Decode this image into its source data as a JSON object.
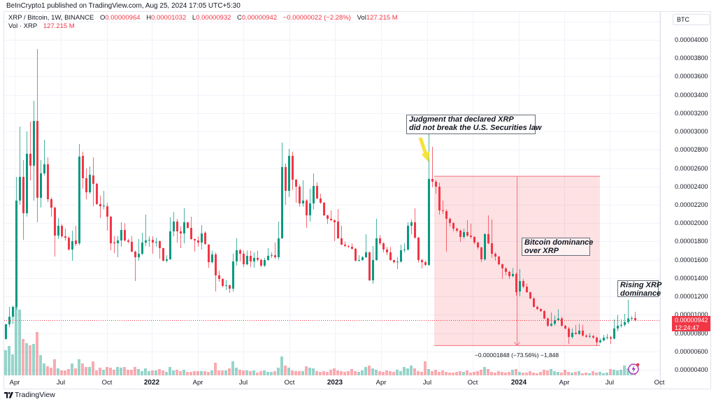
{
  "header": {
    "credit": "BeInCrypto1 published on TradingView.com, Aug 25, 2024 17:05 UTC+5:30"
  },
  "legend": {
    "symbol": "XRP / Bitcoin, 1W, BINANCE",
    "open_label": "O",
    "open": "0.00000964",
    "high_label": "H",
    "high": "0.00001032",
    "low_label": "L",
    "low": "0.00000932",
    "close_label": "C",
    "close": "0.00000942",
    "change": "−0.00000022 (−2.28%)",
    "vol_label": "Vol",
    "vol": "127.215 M",
    "vol_series_label": "Vol · XRP",
    "vol_series_value": "127.215 M"
  },
  "price_axis": {
    "currency_button": "BTC",
    "ticks": [
      "0.00004000",
      "0.00003800",
      "0.00003600",
      "0.00003400",
      "0.00003200",
      "0.00003000",
      "0.00002800",
      "0.00002600",
      "0.00002400",
      "0.00002200",
      "0.00002000",
      "0.00001800",
      "0.00001600",
      "0.00001400",
      "0.00001200",
      "0.00001000",
      "0.00000800",
      "0.00000600",
      "0.00000400"
    ],
    "last_price": "0.00000942",
    "countdown": "12:24:47"
  },
  "time_axis": {
    "ticks": [
      {
        "label": "Apr",
        "at_index": 2.6,
        "bold": false
      },
      {
        "label": "Jul",
        "at_index": 15.8,
        "bold": false
      },
      {
        "label": "Oct",
        "at_index": 29,
        "bold": false
      },
      {
        "label": "2022",
        "at_index": 41.8,
        "bold": true
      },
      {
        "label": "Apr",
        "at_index": 55,
        "bold": false
      },
      {
        "label": "Jul",
        "at_index": 68,
        "bold": false
      },
      {
        "label": "Oct",
        "at_index": 81.2,
        "bold": false
      },
      {
        "label": "2023",
        "at_index": 94.2,
        "bold": true
      },
      {
        "label": "Apr",
        "at_index": 107.4,
        "bold": false
      },
      {
        "label": "Jul",
        "at_index": 120.6,
        "bold": false
      },
      {
        "label": "Oct",
        "at_index": 133.6,
        "bold": false
      },
      {
        "label": "2024",
        "at_index": 146.8,
        "bold": true
      },
      {
        "label": "Apr",
        "at_index": 159.8,
        "bold": false
      },
      {
        "label": "Jul",
        "at_index": 172.8,
        "bold": false
      },
      {
        "label": "Oct",
        "at_index": 187,
        "bold": false
      }
    ]
  },
  "annotations": {
    "judgment": {
      "line1": "Judgment that declared XRP",
      "line2": "did not break the U.S. Securities law"
    },
    "btc_dominance": {
      "line1": "Bitcoin dominance",
      "line2": "over XRP"
    },
    "rising": {
      "line1": "Rising XRP",
      "line2": "dominance"
    }
  },
  "measure": {
    "label": "−0.00001848 (−73.56%) −1,848",
    "from_price_sat": 2512,
    "to_price_sat": 664,
    "from_index": 122.6,
    "to_index": 170
  },
  "footer": {
    "brand": "TradingView"
  },
  "colors": {
    "up": "#089981",
    "down": "#f23645",
    "range_fill": "rgba(242,54,69,0.15)",
    "range_line": "#f4707b",
    "annotation_arrow": "#f5e23c",
    "alert_icon": "#9c27b0",
    "grid": "#f0f3fa"
  },
  "chart_data": {
    "type": "bar",
    "bar_style": "candlestick",
    "title": "XRP / Bitcoin, 1W, BINANCE",
    "xlabel": "",
    "ylabel": "BTC",
    "price_unit": "satoshi (1e-8 BTC); ohlc rows are [open, high, low, close]",
    "interval": "1W",
    "x_tick_labels": [
      "Apr",
      "Jul",
      "Oct",
      "2022",
      "Apr",
      "Jul",
      "Oct",
      "2023",
      "Apr",
      "Jul",
      "Oct",
      "2024",
      "Apr",
      "Jul",
      "Oct"
    ],
    "y_tick_labels": [
      "0.00004000",
      "0.00003800",
      "0.00003600",
      "0.00003400",
      "0.00003200",
      "0.00003000",
      "0.00002800",
      "0.00002600",
      "0.00002400",
      "0.00002200",
      "0.00002000",
      "0.00001800",
      "0.00001600",
      "0.00001400",
      "0.00001200",
      "0.00001000",
      "0.00000800",
      "0.00000600",
      "0.00000400"
    ],
    "ylim": [
      3.4e-06,
      4.31e-05
    ],
    "grid": true,
    "legend_position": "top-left",
    "last": {
      "open": 9.64e-06,
      "high": 1.032e-05,
      "low": 9.32e-06,
      "close": 9.42e-06,
      "change": -2.2e-07,
      "change_pct": -2.28,
      "volume": "127.215M"
    },
    "annotations": [
      "Judgment that declared XRP did not break the U.S. Securities law",
      "Bitcoin dominance over XRP",
      "Rising XRP dominance"
    ],
    "price_range_measure": {
      "from": 2.512e-05,
      "to": 6.64e-06,
      "delta": -1.848e-05,
      "delta_pct": -73.56,
      "ticks": -1848
    },
    "ohlc": [
      [
        735,
        900,
        730,
        896
      ],
      [
        896,
        1086,
        865,
        979
      ],
      [
        979,
        1100,
        900,
        1086
      ],
      [
        1086,
        2505,
        1060,
        2246
      ],
      [
        2246,
        3054,
        2200,
        2505
      ],
      [
        2505,
        2688,
        1818,
        2108
      ],
      [
        2108,
        3000,
        2070,
        2757
      ],
      [
        2757,
        3108,
        2467,
        2627
      ],
      [
        2627,
        3336,
        2246,
        3115
      ],
      [
        3115,
        3900,
        2009,
        2276
      ],
      [
        2276,
        2688,
        2169,
        2543
      ],
      [
        2543,
        2909,
        2520,
        2642
      ],
      [
        2642,
        2718,
        2230,
        2261
      ],
      [
        2261,
        2280,
        2070,
        2169
      ],
      [
        2169,
        2180,
        1635,
        1864
      ],
      [
        1864,
        2055,
        1826,
        1971
      ],
      [
        1971,
        1990,
        1840,
        1856
      ],
      [
        1856,
        1940,
        1810,
        1840
      ],
      [
        1840,
        1856,
        1700,
        1712
      ],
      [
        1712,
        1918,
        1590,
        1803
      ],
      [
        1811,
        1970,
        1750,
        1773
      ],
      [
        1780,
        2864,
        1760,
        2726
      ],
      [
        2734,
        2780,
        2375,
        2490
      ],
      [
        2490,
        2597,
        2261,
        2337
      ],
      [
        2337,
        2619,
        2320,
        2528
      ],
      [
        2520,
        2718,
        2184,
        2429
      ],
      [
        2429,
        2440,
        2200,
        2208
      ],
      [
        2208,
        2300,
        2055,
        2184
      ],
      [
        2184,
        2352,
        2150,
        2190
      ],
      [
        2184,
        2220,
        1918,
        2070
      ],
      [
        2070,
        2080,
        1704,
        1780
      ],
      [
        1790,
        1860,
        1673,
        1780
      ],
      [
        1780,
        1860,
        1628,
        1811
      ],
      [
        1811,
        2009,
        1742,
        1925
      ],
      [
        1925,
        2000,
        1800,
        1811
      ],
      [
        1811,
        1830,
        1780,
        1796
      ],
      [
        1796,
        1860,
        1680,
        1689
      ],
      [
        1689,
        1700,
        1368,
        1628
      ],
      [
        1628,
        1826,
        1590,
        1666
      ],
      [
        1666,
        1895,
        1650,
        1788
      ],
      [
        1788,
        2093,
        1750,
        1811
      ],
      [
        1811,
        1856,
        1742,
        1818
      ],
      [
        1818,
        1856,
        1666,
        1788
      ],
      [
        1788,
        1840,
        1740,
        1795
      ],
      [
        1803,
        1810,
        1612,
        1727
      ],
      [
        1727,
        1730,
        1580,
        1590
      ],
      [
        1590,
        1650,
        1570,
        1605
      ],
      [
        1605,
        2063,
        1600,
        1910
      ],
      [
        1910,
        2123,
        1856,
        2017
      ],
      [
        2017,
        2047,
        1788,
        1910
      ],
      [
        1910,
        1963,
        1727,
        1887
      ],
      [
        1887,
        2162,
        1780,
        2009
      ],
      [
        2009,
        2010,
        1940,
        1948
      ],
      [
        1948,
        2070,
        1820,
        1826
      ],
      [
        1826,
        1830,
        1689,
        1811
      ],
      [
        1811,
        1856,
        1742,
        1788
      ],
      [
        1788,
        1979,
        1712,
        1887
      ],
      [
        1895,
        1910,
        1760,
        1773
      ],
      [
        1765,
        1770,
        1513,
        1574
      ],
      [
        1574,
        1700,
        1560,
        1658
      ],
      [
        1658,
        1680,
        1254,
        1430
      ],
      [
        1430,
        1480,
        1360,
        1391
      ],
      [
        1391,
        1400,
        1300,
        1315
      ],
      [
        1315,
        1380,
        1270,
        1322
      ],
      [
        1322,
        1330,
        1239,
        1285
      ],
      [
        1285,
        1666,
        1254,
        1582
      ],
      [
        1582,
        1834,
        1536,
        1704
      ],
      [
        1704,
        1720,
        1582,
        1666
      ],
      [
        1666,
        1700,
        1521,
        1551
      ],
      [
        1551,
        1700,
        1540,
        1643
      ],
      [
        1643,
        1700,
        1521,
        1582
      ],
      [
        1582,
        1680,
        1513,
        1620
      ],
      [
        1620,
        1700,
        1580,
        1600
      ],
      [
        1600,
        1610,
        1520,
        1536
      ],
      [
        1536,
        1620,
        1521,
        1597
      ],
      [
        1597,
        1727,
        1590,
        1643
      ],
      [
        1643,
        1680,
        1620,
        1650
      ],
      [
        1650,
        1788,
        1610,
        1628
      ],
      [
        1628,
        2017,
        1600,
        1834
      ],
      [
        1834,
        2879,
        1830,
        2612
      ],
      [
        2612,
        2650,
        2200,
        2352
      ],
      [
        2352,
        2810,
        2284,
        2734
      ],
      [
        2734,
        2780,
        2360,
        2474
      ],
      [
        2474,
        2480,
        2223,
        2398
      ],
      [
        2398,
        2420,
        2180,
        2215
      ],
      [
        2215,
        2467,
        2180,
        2246
      ],
      [
        2246,
        2260,
        1948,
        2085
      ],
      [
        2085,
        2375,
        2017,
        2215
      ],
      [
        2215,
        2543,
        2150,
        2406
      ],
      [
        2406,
        2444,
        2260,
        2269
      ],
      [
        2269,
        2320,
        2210,
        2223
      ],
      [
        2223,
        2230,
        2080,
        2085
      ],
      [
        2085,
        2090,
        1990,
        2047
      ],
      [
        2047,
        2140,
        2020,
        2032
      ],
      [
        2032,
        2040,
        1803,
        2009
      ],
      [
        2017,
        2154,
        1830,
        1834
      ],
      [
        1834,
        1971,
        1760,
        1765
      ],
      [
        1765,
        1800,
        1740,
        1750
      ],
      [
        1750,
        1760,
        1730,
        1742
      ],
      [
        1742,
        1780,
        1710,
        1720
      ],
      [
        1720,
        1730,
        1580,
        1590
      ],
      [
        1590,
        1650,
        1580,
        1597
      ],
      [
        1597,
        1640,
        1590,
        1628
      ],
      [
        1628,
        1880,
        1620,
        1681
      ],
      [
        1681,
        1690,
        1370,
        1376
      ],
      [
        1376,
        1750,
        1338,
        1597
      ],
      [
        1597,
        2047,
        1590,
        1834
      ],
      [
        1834,
        1870,
        1760,
        1780
      ],
      [
        1780,
        1790,
        1680,
        1712
      ],
      [
        1712,
        1740,
        1650,
        1681
      ],
      [
        1681,
        1740,
        1590,
        1597
      ],
      [
        1597,
        1600,
        1560,
        1574
      ],
      [
        1574,
        1630,
        1498,
        1580
      ],
      [
        1580,
        1765,
        1570,
        1704
      ],
      [
        1704,
        1780,
        1680,
        1712
      ],
      [
        1712,
        2009,
        1700,
        1971
      ],
      [
        1971,
        2040,
        1880,
        2009
      ],
      [
        2009,
        2162,
        1830,
        1841
      ],
      [
        1841,
        1850,
        1570,
        1597
      ],
      [
        1597,
        1610,
        1506,
        1574
      ],
      [
        1574,
        1590,
        1530,
        1544
      ],
      [
        1544,
        2980,
        1530,
        2482
      ],
      [
        2482,
        2833,
        2390,
        2452
      ],
      [
        2452,
        2470,
        2322,
        2398
      ],
      [
        2398,
        2440,
        2093,
        2139
      ],
      [
        2139,
        2246,
        2100,
        2131
      ],
      [
        2131,
        2150,
        1689,
        2047
      ],
      [
        2047,
        2060,
        1960,
        2001
      ],
      [
        2001,
        2010,
        1910,
        1940
      ],
      [
        1940,
        1950,
        1900,
        1918
      ],
      [
        1918,
        1930,
        1796,
        1849
      ],
      [
        1849,
        1940,
        1830,
        1902
      ],
      [
        1902,
        2032,
        1850,
        1864
      ],
      [
        1864,
        1994,
        1830,
        1849
      ],
      [
        1849,
        1860,
        1770,
        1788
      ],
      [
        1788,
        1800,
        1710,
        1735
      ],
      [
        1735,
        1740,
        1574,
        1605
      ],
      [
        1605,
        1890,
        1590,
        1880
      ],
      [
        1880,
        2085,
        1770,
        1780
      ],
      [
        1780,
        2040,
        1620,
        1666
      ],
      [
        1666,
        1680,
        1590,
        1635
      ],
      [
        1635,
        1640,
        1540,
        1551
      ],
      [
        1551,
        1560,
        1391,
        1506
      ],
      [
        1506,
        1520,
        1430,
        1468
      ],
      [
        1468,
        1480,
        1391,
        1422
      ],
      [
        1422,
        1510,
        1410,
        1445
      ],
      [
        1445,
        1460,
        1208,
        1246
      ],
      [
        1254,
        1498,
        1200,
        1368
      ],
      [
        1368,
        1390,
        1290,
        1307
      ],
      [
        1307,
        1340,
        1240,
        1246
      ],
      [
        1246,
        1250,
        1170,
        1178
      ],
      [
        1178,
        1190,
        1080,
        1086
      ],
      [
        1086,
        1100,
        1050,
        1063
      ],
      [
        1063,
        1070,
        1030,
        1040
      ],
      [
        1040,
        1050,
        950,
        960
      ],
      [
        960,
        970,
        870,
        880
      ],
      [
        880,
        1025,
        870,
        902
      ],
      [
        902,
        990,
        880,
        940
      ],
      [
        940,
        1060,
        930,
        960
      ],
      [
        960,
        980,
        870,
        880
      ],
      [
        880,
        890,
        840,
        850
      ],
      [
        850,
        870,
        682,
        758
      ],
      [
        758,
        850,
        740,
        804
      ],
      [
        804,
        888,
        780,
        790
      ],
      [
        790,
        900,
        780,
        827
      ],
      [
        827,
        890,
        760,
        773
      ],
      [
        773,
        790,
        750,
        760
      ],
      [
        760,
        800,
        745,
        768
      ],
      [
        768,
        780,
        740,
        750
      ],
      [
        750,
        760,
        659,
        700
      ],
      [
        700,
        740,
        690,
        720
      ],
      [
        720,
        780,
        710,
        750
      ],
      [
        750,
        790,
        730,
        755
      ],
      [
        755,
        770,
        680,
        740
      ],
      [
        740,
        950,
        730,
        850
      ],
      [
        850,
        1000,
        820,
        880
      ],
      [
        880,
        950,
        860,
        890
      ],
      [
        890,
        1010,
        870,
        920
      ],
      [
        920,
        1163,
        900,
        960
      ],
      [
        960,
        985,
        940,
        964
      ],
      [
        964,
        1032,
        932,
        942
      ]
    ],
    "volume_relative": [
      36,
      42,
      30,
      98,
      94,
      52,
      46,
      43,
      45,
      62,
      29,
      17,
      13,
      11,
      23,
      10,
      7,
      7,
      9,
      17,
      10,
      23,
      17,
      12,
      12,
      20,
      7,
      11,
      8,
      12,
      11,
      8,
      12,
      11,
      12,
      8,
      8,
      12,
      9,
      6,
      10,
      6,
      7,
      7,
      9,
      7,
      5,
      12,
      7,
      8,
      6,
      8,
      5,
      5,
      6,
      6,
      6,
      6,
      5,
      7,
      18,
      7,
      7,
      7,
      10,
      20,
      11,
      8,
      7,
      7,
      6,
      7,
      4,
      6,
      7,
      5,
      5,
      6,
      11,
      27,
      14,
      11,
      7,
      6,
      6,
      6,
      13,
      11,
      10,
      6,
      5,
      6,
      5,
      8,
      10,
      7,
      6,
      5,
      6,
      9,
      6,
      5,
      7,
      12,
      14,
      10,
      8,
      6,
      5,
      7,
      6,
      5,
      8,
      6,
      12,
      10,
      14,
      10,
      6,
      5,
      20,
      9,
      6,
      8,
      5,
      7,
      5,
      4,
      4,
      5,
      6,
      5,
      7,
      4,
      5,
      6,
      8,
      12,
      9,
      5,
      4,
      6,
      5,
      4,
      5,
      8,
      9,
      5,
      4,
      4,
      6,
      4,
      3,
      5,
      8,
      7,
      9,
      6,
      5,
      4,
      8,
      5,
      4,
      5,
      6,
      3,
      4,
      3,
      6,
      4,
      5,
      3,
      4,
      9,
      8,
      7,
      8,
      14,
      10,
      3,
      3
    ]
  }
}
